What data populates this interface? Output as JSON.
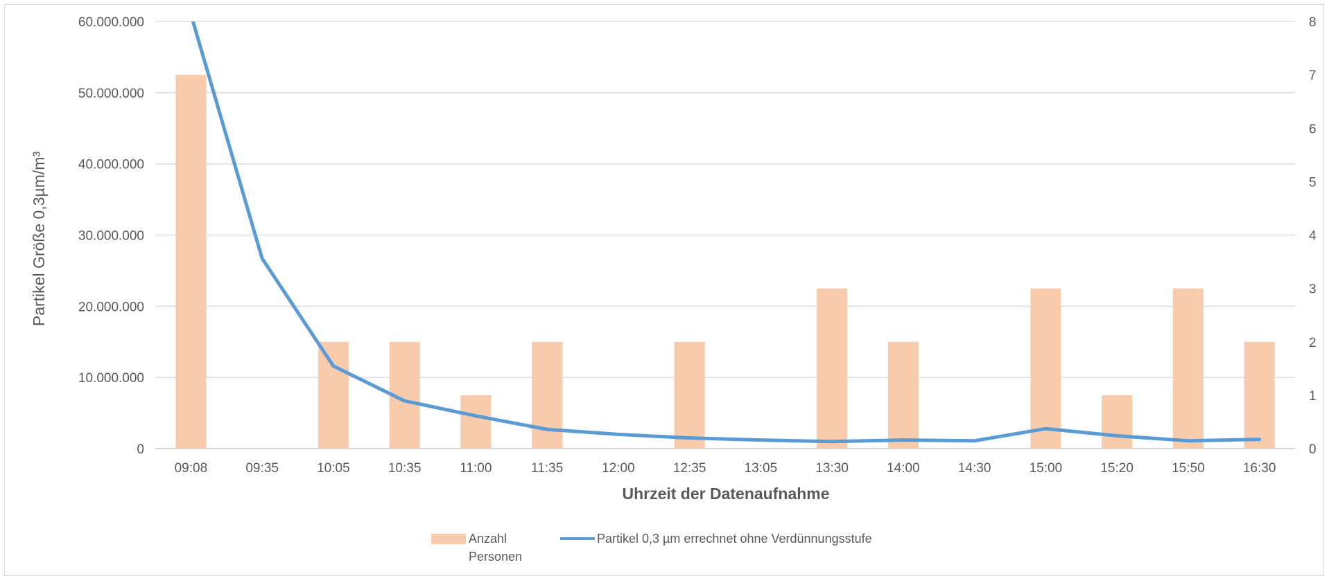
{
  "chart_data": {
    "type": "bar",
    "xlabel": "Uhrzeit der Datenaufnahme",
    "ylabel": "Partikel Größe 0,3µm/m³",
    "categories": [
      "09:08",
      "09:35",
      "10:05",
      "10:35",
      "11:00",
      "11:35",
      "12:00",
      "12:35",
      "13:05",
      "13:30",
      "14:00",
      "14:30",
      "15:00",
      "15:20",
      "15:50",
      "16:30"
    ],
    "ylim_left": [
      0,
      60000000
    ],
    "ylim_right": [
      0,
      8
    ],
    "yticks_left": [
      "0",
      "10.000.000",
      "20.000.000",
      "30.000.000",
      "40.000.000",
      "50.000.000",
      "60.000.000"
    ],
    "yticks_right": [
      "0",
      "1",
      "2",
      "3",
      "4",
      "5",
      "6",
      "7",
      "8"
    ],
    "grid": true,
    "legend_position": "bottom",
    "series": [
      {
        "name": "Anzahl Personen",
        "type": "bar",
        "axis": "right",
        "color": "#f8cbad",
        "values": [
          7,
          0,
          2,
          2,
          1,
          2,
          0,
          2,
          0,
          3,
          2,
          0,
          3,
          1,
          3,
          2
        ]
      },
      {
        "name": "Partikel 0,3 µm errechnet ohne Verdünnungsstufe",
        "type": "line",
        "axis": "left",
        "color": "#5b9bd5",
        "values": [
          61000000,
          26700000,
          11600000,
          6700000,
          4600000,
          2700000,
          2000000,
          1500000,
          1200000,
          1000000,
          1200000,
          1100000,
          2800000,
          1800000,
          1100000,
          1300000
        ]
      }
    ],
    "legend": {
      "bar_label_line1": "Anzahl",
      "bar_label_line2": "Personen",
      "line_label": "Partikel 0,3 µm errechnet ohne Verdünnungsstufe"
    }
  }
}
